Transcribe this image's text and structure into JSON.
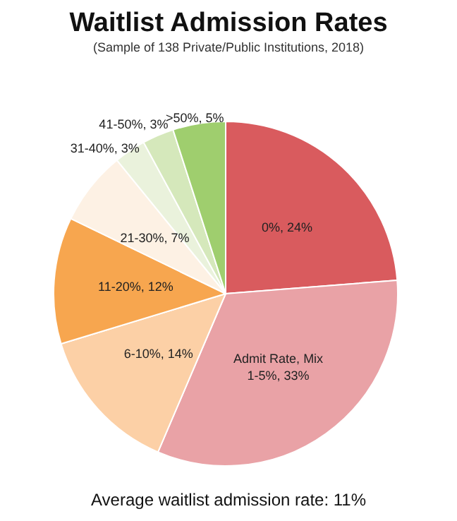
{
  "chart_data": {
    "type": "pie",
    "title": "Waitlist Admission Rates",
    "subtitle": "(Sample of 138 Private/Public Institutions, 2018)",
    "categories": [
      "0%",
      "1-5%",
      "6-10%",
      "11-20%",
      "21-30%",
      "31-40%",
      "41-50%",
      ">50%"
    ],
    "values": [
      24,
      33,
      14,
      12,
      7,
      3,
      3,
      5
    ],
    "colors": [
      "#d95b5e",
      "#e9a2a6",
      "#fcd0a6",
      "#f7a64f",
      "#fdf1e4",
      "#eaf2dc",
      "#d5e8bb",
      "#9fce6e"
    ],
    "value_labels": [
      "24%",
      "33%",
      "14%",
      "12%",
      "7%",
      "3%",
      "3%",
      "5%"
    ],
    "annotations": [
      {
        "text": "Admit Rate, Mix",
        "x": "1-5%"
      },
      "Average waitlist admission rate: 11%"
    ]
  }
}
